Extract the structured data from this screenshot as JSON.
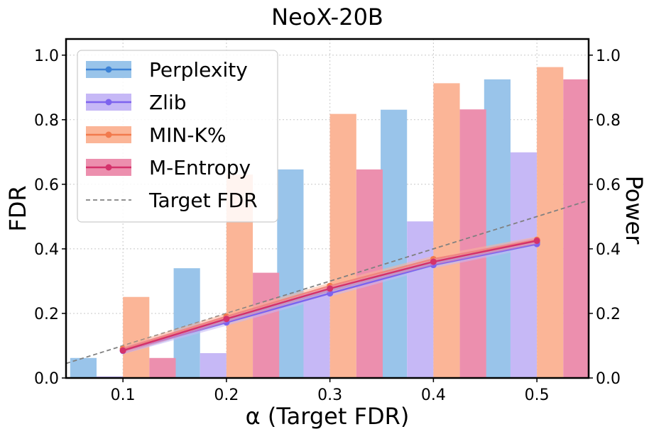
{
  "chart_data": {
    "type": "bar",
    "title": "NeoX-20B",
    "xlabel": "α (Target FDR)",
    "ylabel_left": "FDR",
    "ylabel_right": "Power",
    "categories": [
      0.1,
      0.2,
      0.3,
      0.4,
      0.5
    ],
    "category_labels": [
      "0.1",
      "0.2",
      "0.3",
      "0.4",
      "0.5"
    ],
    "xlim": [
      0.045,
      0.55
    ],
    "ylim": [
      0,
      1.05
    ],
    "yticks": [
      0.0,
      0.2,
      0.4,
      0.6,
      0.8,
      1.0
    ],
    "ytick_labels": [
      "0.0",
      "0.2",
      "0.4",
      "0.6",
      "0.8",
      "1.0"
    ],
    "grid": true,
    "legend_position": "top-left",
    "bars_axis": "right (Power)",
    "lines_axis": "left (FDR)",
    "series": [
      {
        "name": "Perplexity",
        "bar_color": "#99c4ea",
        "line_color": "#3c82d6",
        "power": [
          0.062,
          0.34,
          0.646,
          0.831,
          0.925
        ],
        "fdr": [
          0.085,
          0.178,
          0.27,
          0.355,
          0.42
        ]
      },
      {
        "name": "Zlib",
        "bar_color": "#c6b8f6",
        "line_color": "#7d63ee",
        "power": [
          0.005,
          0.077,
          0.265,
          0.485,
          0.699
        ],
        "fdr": [
          0.084,
          0.172,
          0.262,
          0.35,
          0.415
        ]
      },
      {
        "name": "MIN-K%",
        "bar_color": "#fbb597",
        "line_color": "#f27a4d",
        "power": [
          0.251,
          0.63,
          0.818,
          0.913,
          0.963
        ],
        "fdr": [
          0.09,
          0.19,
          0.285,
          0.368,
          0.428
        ]
      },
      {
        "name": "M-Entropy",
        "bar_color": "#ec8fae",
        "line_color": "#d4326b",
        "power": [
          0.062,
          0.326,
          0.646,
          0.832,
          0.925
        ],
        "fdr": [
          0.085,
          0.183,
          0.277,
          0.36,
          0.425
        ]
      }
    ],
    "reference_line": {
      "name": "Target FDR",
      "color": "#808080",
      "style": "dashed",
      "x": [
        0.045,
        0.55
      ],
      "y": [
        0.045,
        0.55
      ]
    }
  }
}
